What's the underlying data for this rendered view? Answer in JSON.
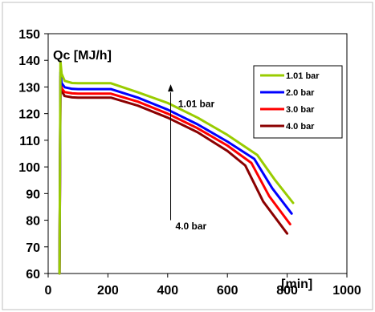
{
  "chart_data": {
    "type": "line",
    "ylabel": "Qc [MJ/h]",
    "xlabel": "[min]",
    "xlim": [
      0,
      1000
    ],
    "ylim": [
      60,
      150
    ],
    "xticks": [
      0,
      200,
      400,
      600,
      800,
      1000
    ],
    "yticks": [
      60,
      70,
      80,
      90,
      100,
      110,
      120,
      130,
      140,
      150
    ],
    "grid": false,
    "legend_position": "top-right",
    "annotations": {
      "top": "1.01 bar",
      "bottom": "4.0 bar"
    },
    "series": [
      {
        "name": "1.01 bar",
        "color": "#99cc00",
        "x": [
          38,
          41,
          45,
          55,
          80,
          100,
          150,
          210,
          300,
          400,
          500,
          600,
          700,
          760,
          820
        ],
        "y": [
          60,
          139.5,
          135,
          132.3,
          131.5,
          131.4,
          131.4,
          131.4,
          128,
          124,
          118.5,
          112,
          104.5,
          95,
          86.5
        ]
      },
      {
        "name": "2.0 bar",
        "color": "#0000ff",
        "x": [
          38,
          41,
          45,
          55,
          80,
          100,
          150,
          210,
          300,
          400,
          500,
          600,
          690,
          750,
          815
        ],
        "y": [
          60,
          135.5,
          131.5,
          129.9,
          129.3,
          129.2,
          129.2,
          129.2,
          126,
          121.5,
          116,
          109.5,
          103,
          92,
          82.5
        ]
      },
      {
        "name": "3.0 bar",
        "color": "#ff0000",
        "x": [
          38,
          41,
          45,
          55,
          80,
          100,
          150,
          210,
          300,
          400,
          500,
          600,
          680,
          740,
          810
        ],
        "y": [
          60,
          134,
          129.5,
          128.1,
          127.6,
          127.5,
          127.5,
          127.5,
          124.5,
          120,
          114.5,
          108,
          101.5,
          89,
          78.5
        ]
      },
      {
        "name": "4.0 bar",
        "color": "#8b0000",
        "x": [
          38,
          41,
          45,
          55,
          80,
          100,
          150,
          210,
          300,
          400,
          500,
          600,
          660,
          720,
          800
        ],
        "y": [
          60,
          132.5,
          128.5,
          126.6,
          126.1,
          126,
          126,
          126,
          123,
          118.5,
          113,
          106,
          100.5,
          87,
          75
        ]
      }
    ]
  }
}
